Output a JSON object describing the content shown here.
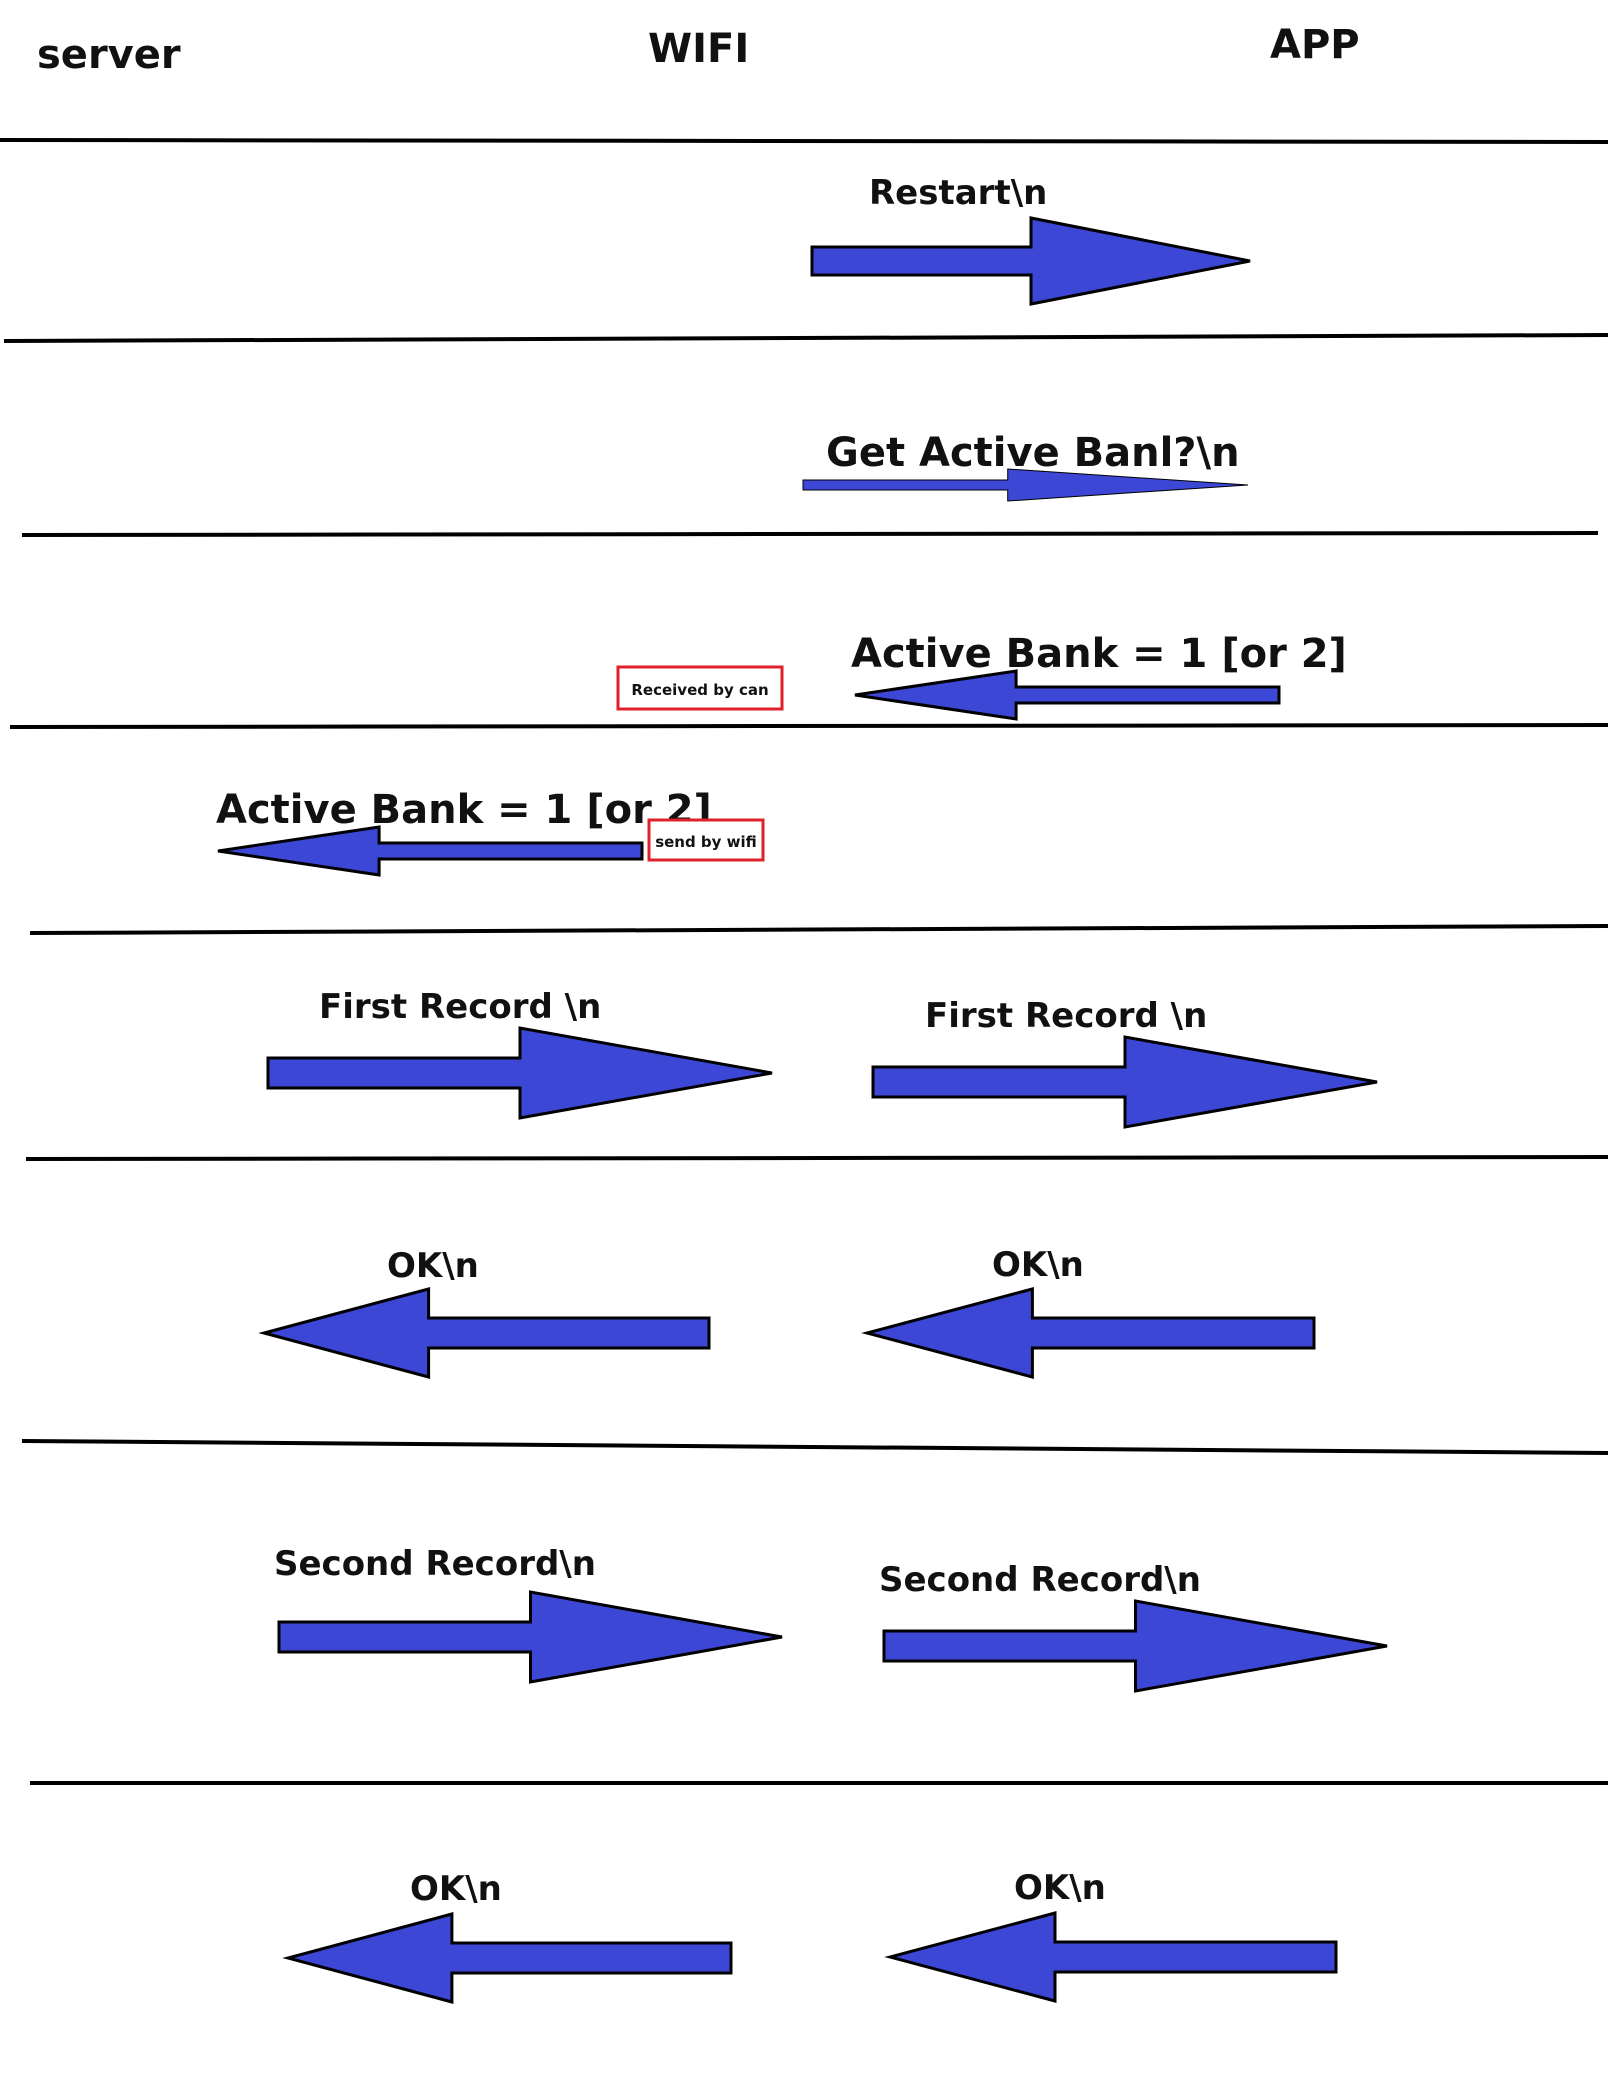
{
  "colors": {
    "arrow_fill": "#3c47d6",
    "arrow_stroke": "#000000",
    "line": "#000000",
    "note_border": "#e0202a",
    "text": "#111111"
  },
  "columns": {
    "server": "server",
    "wifi": "WIFI",
    "app": "APP"
  },
  "rows": [
    {
      "messages": [
        {
          "label": "Restart\\n",
          "direction": "right",
          "from": "wifi",
          "to": "app"
        }
      ]
    },
    {
      "messages": [
        {
          "label": "Get Active Banl?\\n",
          "direction": "right",
          "from": "wifi",
          "to": "app"
        }
      ]
    },
    {
      "messages": [
        {
          "label": "Active Bank = 1 [or 2]",
          "direction": "left",
          "from": "app",
          "to": "wifi"
        }
      ],
      "note": "Received by can"
    },
    {
      "messages": [
        {
          "label": "Active Bank = 1 [or 2]",
          "direction": "left",
          "from": "wifi",
          "to": "server"
        }
      ],
      "note": "send by wifi"
    },
    {
      "messages": [
        {
          "label": "First Record \\n",
          "direction": "right",
          "from": "server",
          "to": "wifi"
        },
        {
          "label": "First Record \\n",
          "direction": "right",
          "from": "wifi",
          "to": "app"
        }
      ]
    },
    {
      "messages": [
        {
          "label": "OK\\n",
          "direction": "left",
          "from": "wifi",
          "to": "server"
        },
        {
          "label": "OK\\n",
          "direction": "left",
          "from": "app",
          "to": "wifi"
        }
      ]
    },
    {
      "messages": [
        {
          "label": "Second Record\\n",
          "direction": "right",
          "from": "server",
          "to": "wifi"
        },
        {
          "label": "Second Record\\n",
          "direction": "right",
          "from": "wifi",
          "to": "app"
        }
      ]
    },
    {
      "messages": [
        {
          "label": "OK\\n",
          "direction": "left",
          "from": "wifi",
          "to": "server"
        },
        {
          "label": "OK\\n",
          "direction": "left",
          "from": "app",
          "to": "wifi"
        }
      ]
    }
  ]
}
